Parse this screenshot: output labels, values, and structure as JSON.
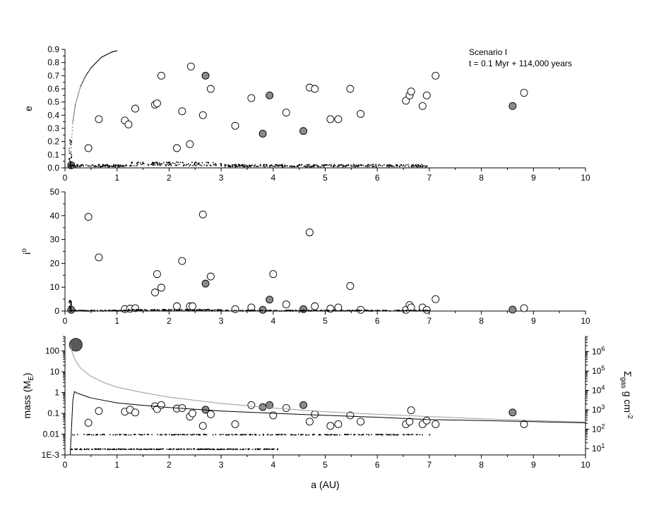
{
  "chart_data": [
    {
      "type": "scatter",
      "panel": "eccentricity",
      "ylabel": "e",
      "xlim": [
        0,
        10
      ],
      "ylim": [
        0,
        0.9
      ],
      "yticks": [
        0.0,
        0.1,
        0.2,
        0.3,
        0.4,
        0.5,
        0.6,
        0.7,
        0.8,
        0.9
      ],
      "xticks": [
        0,
        1,
        2,
        3,
        4,
        5,
        6,
        7,
        8,
        9,
        10
      ],
      "annotation": [
        "Scenario I",
        "t = 0.1 Myr + 114,000 years"
      ],
      "series": [
        {
          "style": "open-circle",
          "points": [
            [
              0.45,
              0.15
            ],
            [
              0.65,
              0.37
            ],
            [
              1.15,
              0.36
            ],
            [
              1.22,
              0.33
            ],
            [
              1.35,
              0.45
            ],
            [
              1.73,
              0.48
            ],
            [
              1.77,
              0.49
            ],
            [
              1.85,
              0.7
            ],
            [
              2.15,
              0.15
            ],
            [
              2.25,
              0.43
            ],
            [
              2.4,
              0.18
            ],
            [
              2.42,
              0.77
            ],
            [
              2.65,
              0.4
            ],
            [
              2.8,
              0.6
            ],
            [
              3.27,
              0.32
            ],
            [
              3.58,
              0.53
            ],
            [
              4.25,
              0.42
            ],
            [
              4.7,
              0.61
            ],
            [
              4.8,
              0.6
            ],
            [
              5.1,
              0.37
            ],
            [
              5.25,
              0.37
            ],
            [
              5.48,
              0.6
            ],
            [
              5.68,
              0.41
            ],
            [
              6.55,
              0.51
            ],
            [
              6.62,
              0.55
            ],
            [
              6.65,
              0.58
            ],
            [
              6.87,
              0.47
            ],
            [
              6.95,
              0.55
            ],
            [
              7.12,
              0.7
            ],
            [
              8.82,
              0.57
            ]
          ]
        },
        {
          "style": "filled-circle",
          "points": [
            [
              0.12,
              0.02
            ],
            [
              2.7,
              0.7
            ],
            [
              3.8,
              0.26
            ],
            [
              3.93,
              0.55
            ],
            [
              4.58,
              0.28
            ],
            [
              8.6,
              0.47
            ]
          ]
        },
        {
          "style": "dotted-line",
          "points": [
            [
              0.1,
              0.02
            ],
            [
              0.15,
              0.35
            ],
            [
              0.2,
              0.48
            ],
            [
              0.3,
              0.62
            ],
            [
              0.4,
              0.7
            ],
            [
              0.5,
              0.76
            ],
            [
              0.6,
              0.8
            ],
            [
              0.7,
              0.84
            ],
            [
              0.8,
              0.86
            ],
            [
              0.9,
              0.88
            ],
            [
              1.0,
              0.89
            ]
          ]
        },
        {
          "style": "small-dots",
          "range": [
            0.1,
            7.0
          ],
          "level": 0.02
        }
      ]
    },
    {
      "type": "scatter",
      "panel": "inclination",
      "ylabel": "i",
      "ylabel_superscript": "o",
      "xlim": [
        0,
        10
      ],
      "ylim": [
        0,
        50
      ],
      "yticks": [
        0,
        10,
        20,
        30,
        40,
        50
      ],
      "xticks": [
        0,
        1,
        2,
        3,
        4,
        5,
        6,
        7,
        8,
        9,
        10
      ],
      "series": [
        {
          "style": "open-circle",
          "points": [
            [
              0.45,
              39.5
            ],
            [
              0.65,
              22.5
            ],
            [
              1.15,
              0.8
            ],
            [
              1.25,
              1.0
            ],
            [
              1.35,
              1.2
            ],
            [
              1.73,
              7.8
            ],
            [
              1.77,
              15.5
            ],
            [
              1.85,
              9.8
            ],
            [
              2.15,
              2.0
            ],
            [
              2.25,
              21.0
            ],
            [
              2.4,
              2.0
            ],
            [
              2.45,
              2.0
            ],
            [
              2.65,
              40.5
            ],
            [
              2.8,
              14.5
            ],
            [
              3.27,
              0.8
            ],
            [
              3.58,
              1.5
            ],
            [
              4.0,
              15.5
            ],
            [
              4.25,
              2.8
            ],
            [
              4.7,
              33.0
            ],
            [
              4.8,
              2.0
            ],
            [
              5.1,
              1.0
            ],
            [
              5.25,
              1.5
            ],
            [
              5.48,
              10.5
            ],
            [
              5.68,
              0.5
            ],
            [
              6.55,
              0.5
            ],
            [
              6.62,
              2.5
            ],
            [
              6.65,
              1.5
            ],
            [
              6.87,
              1.5
            ],
            [
              6.95,
              0.5
            ],
            [
              7.12,
              5.0
            ],
            [
              8.82,
              1.2
            ]
          ]
        },
        {
          "style": "filled-circle",
          "points": [
            [
              0.12,
              0.5
            ],
            [
              2.7,
              11.5
            ],
            [
              3.8,
              0.5
            ],
            [
              3.93,
              4.8
            ],
            [
              4.58,
              0.8
            ],
            [
              8.6,
              0.6
            ]
          ]
        },
        {
          "style": "small-dots",
          "range": [
            0.1,
            7.0
          ],
          "level": 0.4
        }
      ]
    },
    {
      "type": "scatter",
      "panel": "mass",
      "ylabel": "mass (M",
      "ylabel_subscript": "E",
      "ylabel_close": ")",
      "yscale": "log",
      "ylim": [
        0.001,
        500
      ],
      "yticks": [
        "1E-3",
        "0.01",
        "0.1",
        "1",
        "10",
        "100"
      ],
      "xlabel": "a (AU)",
      "xlim": [
        0,
        10
      ],
      "xticks": [
        0,
        1,
        2,
        3,
        4,
        5,
        6,
        7,
        8,
        9,
        10
      ],
      "y2label": "Σ",
      "y2label_subscript": "gas",
      "y2label_rest": " g cm",
      "y2label_superscript": "-2",
      "y2scale": "log",
      "y2ticks": [
        1,
        2,
        3,
        4,
        5,
        6
      ],
      "series": [
        {
          "style": "open-circle",
          "points": [
            [
              0.45,
              0.035
            ],
            [
              0.65,
              0.13
            ],
            [
              1.15,
              0.12
            ],
            [
              1.25,
              0.15
            ],
            [
              1.35,
              0.11
            ],
            [
              1.73,
              0.22
            ],
            [
              1.77,
              0.16
            ],
            [
              1.85,
              0.25
            ],
            [
              2.15,
              0.17
            ],
            [
              2.25,
              0.18
            ],
            [
              2.4,
              0.07
            ],
            [
              2.45,
              0.1
            ],
            [
              2.65,
              0.025
            ],
            [
              2.8,
              0.09
            ],
            [
              3.27,
              0.03
            ],
            [
              3.58,
              0.25
            ],
            [
              4.0,
              0.08
            ],
            [
              4.25,
              0.18
            ],
            [
              4.7,
              0.04
            ],
            [
              4.8,
              0.09
            ],
            [
              5.1,
              0.025
            ],
            [
              5.25,
              0.03
            ],
            [
              5.48,
              0.08
            ],
            [
              5.68,
              0.04
            ],
            [
              6.55,
              0.03
            ],
            [
              6.62,
              0.04
            ],
            [
              6.65,
              0.14
            ],
            [
              6.87,
              0.03
            ],
            [
              6.95,
              0.045
            ],
            [
              7.12,
              0.03
            ],
            [
              8.82,
              0.03
            ]
          ]
        },
        {
          "style": "filled-circle",
          "points": [
            [
              2.7,
              0.15
            ],
            [
              3.8,
              0.2
            ],
            [
              3.93,
              0.25
            ],
            [
              4.58,
              0.25
            ],
            [
              8.6,
              0.11
            ]
          ]
        },
        {
          "style": "big-filled-circle",
          "points": [
            [
              0.1,
              200
            ]
          ]
        },
        {
          "style": "gray-curve",
          "points": [
            [
              0.1,
              200
            ],
            [
              0.15,
              70
            ],
            [
              0.2,
              35
            ],
            [
              0.3,
              15
            ],
            [
              0.5,
              6
            ],
            [
              0.75,
              3
            ],
            [
              1.0,
              1.8
            ],
            [
              1.5,
              1.0
            ],
            [
              2.0,
              0.6
            ],
            [
              3.0,
              0.3
            ],
            [
              4.0,
              0.18
            ],
            [
              5.0,
              0.12
            ],
            [
              6.0,
              0.09
            ],
            [
              7.0,
              0.07
            ],
            [
              8.0,
              0.055
            ],
            [
              9.0,
              0.045
            ],
            [
              10.0,
              0.038
            ]
          ]
        },
        {
          "style": "black-curve",
          "points": [
            [
              0.1,
              0.001
            ],
            [
              0.15,
              0.4
            ],
            [
              0.18,
              1.1
            ],
            [
              0.25,
              0.9
            ],
            [
              0.5,
              0.55
            ],
            [
              1.0,
              0.32
            ],
            [
              1.5,
              0.24
            ],
            [
              2.0,
              0.19
            ],
            [
              3.0,
              0.13
            ],
            [
              4.0,
              0.1
            ],
            [
              5.0,
              0.08
            ],
            [
              6.0,
              0.065
            ],
            [
              7.0,
              0.05
            ],
            [
              8.0,
              0.045
            ],
            [
              9.0,
              0.04
            ],
            [
              10.0,
              0.035
            ]
          ]
        },
        {
          "style": "small-dots-band",
          "range": [
            0.1,
            7.0
          ],
          "level": 0.01
        },
        {
          "style": "small-dots-band",
          "range": [
            0.1,
            4.1
          ],
          "level": 0.002
        }
      ]
    }
  ]
}
